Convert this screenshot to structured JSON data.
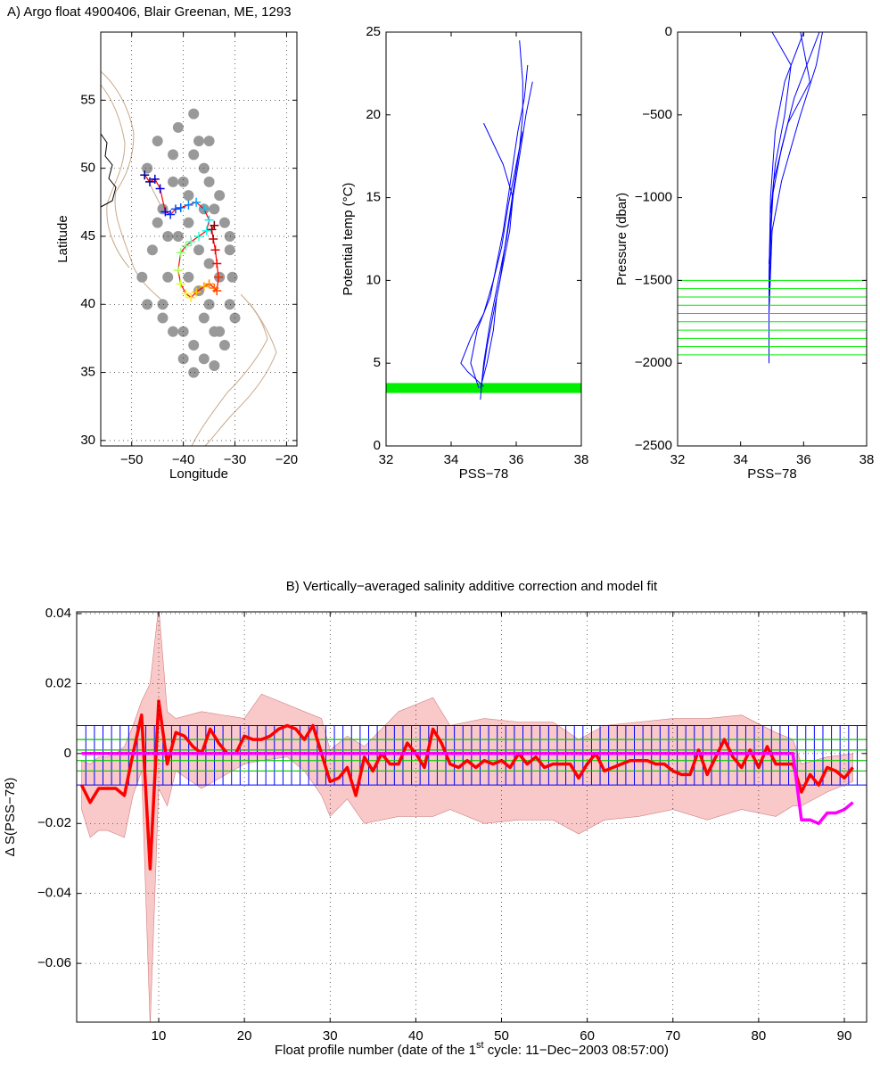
{
  "chart_data": [
    {
      "type": "scatter",
      "suptitle": "A) Argo float 4900406, Blair Greenan, ME, 1293",
      "xlabel": "Longitude",
      "ylabel": "Latitude",
      "grid": true,
      "xlim": [
        -56,
        -18
      ],
      "ylim": [
        29.6,
        60
      ],
      "xticks": [
        {
          "value": -50,
          "label": "−50"
        },
        {
          "value": -40,
          "label": "−40"
        },
        {
          "value": -30,
          "label": "−30"
        },
        {
          "value": -20,
          "label": "−20"
        }
      ],
      "yticks": [
        30,
        35,
        40,
        45,
        50,
        55
      ],
      "series": [
        {
          "color": "#999999",
          "x": [
            -47,
            -45,
            -44,
            -42,
            -41,
            -40,
            -39,
            -38,
            -37,
            -36,
            -35,
            -34,
            -33,
            -32,
            -31,
            -30.5,
            -46,
            -43,
            -41,
            -39,
            -37,
            -35,
            -33,
            -31,
            -44,
            -42,
            -40,
            -38,
            -36,
            -34,
            -32,
            -30,
            -45,
            -43,
            -39,
            -37,
            -35,
            -33,
            -40,
            -38,
            -36,
            -34,
            -42,
            -38,
            -35,
            -31,
            -48,
            -47,
            -44,
            -36
          ],
          "y": [
            50,
            52,
            47,
            51,
            53,
            49,
            48,
            54,
            52,
            50,
            49,
            47,
            48,
            46,
            44,
            42,
            44,
            42,
            45,
            46,
            44,
            43,
            42,
            40,
            40,
            38,
            38,
            37,
            39,
            38,
            37,
            39,
            46,
            45,
            42,
            41,
            40,
            38,
            36,
            35,
            36,
            35.5,
            49,
            51,
            52,
            45,
            42,
            40,
            39,
            47
          ]
        },
        {
          "color": "#ff0000",
          "colormap": "jet",
          "x": [
            -47.5,
            -46.5,
            -45.5,
            -44.5,
            -43.5,
            -42.5,
            -41.5,
            -40.5,
            -39,
            -37.5,
            -36,
            -35,
            -35.5,
            -37,
            -38.5,
            -39.5,
            -40.5,
            -41,
            -40.5,
            -39.5,
            -38.5,
            -37.5,
            -36,
            -35,
            -34,
            -33.5,
            -33.2,
            -33.5,
            -33.8,
            -34.2,
            -34.5,
            -34
          ],
          "y": [
            49.5,
            49,
            49.2,
            48.5,
            46.8,
            46.6,
            47,
            47.1,
            47.3,
            47.5,
            47,
            46.2,
            45.4,
            45,
            44.6,
            44.3,
            43.8,
            42.5,
            41.5,
            40.8,
            40.5,
            40.9,
            41.3,
            41.5,
            41.2,
            41,
            42,
            43,
            44,
            44.8,
            45.5,
            45.8
          ]
        }
      ]
    },
    {
      "type": "line",
      "xlabel": "PSS−78",
      "ylabel": "Potential temp (°C)",
      "grid": false,
      "xlim": [
        32,
        38
      ],
      "ylim": [
        0,
        25
      ],
      "xticks": [
        32,
        34,
        36,
        38
      ],
      "yticks": [
        0,
        5,
        10,
        15,
        20,
        25
      ],
      "band": {
        "color": "#00ee00",
        "range": [
          3.2,
          3.8
        ]
      },
      "series": [
        {
          "color": "#0000ff",
          "x": [
            34.9,
            34.95,
            35.1,
            35.3,
            35.5,
            35.65,
            35.8,
            35.95,
            36.1,
            36.2,
            36.2,
            36.1
          ],
          "y": [
            2.8,
            4,
            6,
            8,
            10,
            12,
            14,
            16,
            18,
            20,
            22,
            24.5
          ]
        },
        {
          "color": "#0000ff",
          "x": [
            34.85,
            34.6,
            34.8,
            35.2,
            35.4,
            35.6,
            35.75,
            35.9,
            36.05,
            36.25,
            36.35
          ],
          "y": [
            3.5,
            5,
            7,
            9,
            11,
            13,
            15,
            17,
            19,
            21,
            23
          ]
        },
        {
          "color": "#0000ff",
          "x": [
            35.0,
            34.5,
            34.3,
            34.6,
            35.0,
            35.3,
            35.55,
            35.75,
            36.0,
            36.2
          ],
          "y": [
            3.6,
            4.5,
            5,
            6.5,
            8,
            10,
            12,
            14.5,
            17,
            19
          ]
        },
        {
          "color": "#0000ff",
          "x": [
            34.9,
            35.1,
            35.3,
            35.4,
            35.6,
            35.8,
            35.9,
            35.6,
            35.0
          ],
          "y": [
            3.5,
            5,
            7,
            9,
            11,
            13,
            15,
            17,
            19.5
          ]
        },
        {
          "color": "#0000ff",
          "x": [
            34.92,
            35.0,
            35.2,
            35.45,
            35.7,
            35.9,
            36.1,
            36.3,
            36.5
          ],
          "y": [
            3.4,
            5,
            7.5,
            10,
            12.5,
            15,
            17.5,
            20,
            22
          ]
        }
      ]
    },
    {
      "type": "line",
      "xlabel": "PSS−78",
      "ylabel": "Pressure (dbar)",
      "grid": false,
      "xlim": [
        32,
        38
      ],
      "ylim": [
        -2500,
        0
      ],
      "xticks": [
        32,
        34,
        36,
        38
      ],
      "yticks": [
        {
          "value": -2500,
          "label": "−2500"
        },
        {
          "value": -2000,
          "label": "−2000"
        },
        {
          "value": -1500,
          "label": "−1500"
        },
        {
          "value": -1000,
          "label": "−1000"
        },
        {
          "value": -500,
          "label": "−500"
        },
        0
      ],
      "levels": {
        "color": "#00ee00",
        "values": [
          -1500,
          -1550,
          -1600,
          -1650,
          -1700,
          -1750,
          -1800,
          -1850,
          -1900,
          -1950
        ]
      },
      "series": [
        {
          "color": "#0000ff",
          "x": [
            34.9,
            34.9,
            34.95,
            35.1,
            35.4,
            35.8,
            36.0
          ],
          "y": [
            -2000,
            -1500,
            -1000,
            -600,
            -300,
            -100,
            0
          ]
        },
        {
          "color": "#0000ff",
          "x": [
            34.9,
            35.0,
            35.3,
            35.7,
            36.2,
            36.5
          ],
          "y": [
            -1600,
            -1000,
            -700,
            -400,
            -150,
            0
          ]
        },
        {
          "color": "#0000ff",
          "x": [
            34.9,
            34.95,
            35.1,
            35.4,
            35.6,
            35.0
          ],
          "y": [
            -1500,
            -1100,
            -800,
            -500,
            -200,
            0
          ]
        },
        {
          "color": "#0000ff",
          "x": [
            34.9,
            35.0,
            35.3,
            35.9,
            36.4,
            36.6
          ],
          "y": [
            -1700,
            -1200,
            -900,
            -500,
            -200,
            0
          ]
        },
        {
          "color": "#0000ff",
          "x": [
            34.9,
            35.05,
            35.5,
            36.2,
            35.9
          ],
          "y": [
            -1400,
            -900,
            -550,
            -300,
            0
          ]
        }
      ]
    },
    {
      "type": "line",
      "title": "B) Vertically−averaged salinity  additive correction and model fit",
      "xlabel": [
        "Float profile number (date of the 1",
        "st",
        " cycle: 11−Dec−2003 08:57:00)"
      ],
      "ylabel": "Δ S(PSS−78)",
      "grid": true,
      "xlim": [
        0.43,
        92.6
      ],
      "ylim": [
        -0.0768,
        0.0405
      ],
      "xticks": [
        10,
        20,
        30,
        40,
        50,
        60,
        70,
        80,
        90
      ],
      "yticks": [
        {
          "value": -0.06,
          "label": "−0.06"
        },
        {
          "value": -0.04,
          "label": "−0.04"
        },
        {
          "value": -0.02,
          "label": "−0.02"
        },
        0,
        0.02,
        0.04
      ],
      "band": {
        "color": "#f9c8c8",
        "x": [
          1,
          2,
          3,
          4,
          5,
          6,
          7,
          8,
          9,
          10,
          11,
          12,
          15,
          20,
          22,
          25,
          27,
          29,
          30,
          32,
          34,
          38,
          42,
          44,
          48,
          52,
          56,
          59,
          62,
          66,
          70,
          74,
          78,
          82,
          84,
          85,
          88,
          91
        ],
        "upper": [
          -0.002,
          -0.003,
          -0.001,
          -0.001,
          0.0,
          0.002,
          0.008,
          0.015,
          0.02,
          0.042,
          0.012,
          0.01,
          0.012,
          0.01,
          0.017,
          0.014,
          0.012,
          0.01,
          0.001,
          0.005,
          0.002,
          0.012,
          0.016,
          0.008,
          0.01,
          0.009,
          0.009,
          0.004,
          0.008,
          0.009,
          0.01,
          0.01,
          0.011,
          0.006,
          0.004,
          -0.003,
          -0.001,
          0.0
        ],
        "lower": [
          -0.016,
          -0.024,
          -0.022,
          -0.022,
          -0.023,
          -0.024,
          -0.012,
          -0.005,
          -0.078,
          -0.01,
          -0.015,
          -0.005,
          -0.01,
          -0.003,
          -0.002,
          -0.001,
          -0.005,
          -0.012,
          -0.018,
          -0.013,
          -0.02,
          -0.018,
          -0.018,
          -0.016,
          -0.02,
          -0.019,
          -0.019,
          -0.023,
          -0.019,
          -0.018,
          -0.016,
          -0.019,
          -0.016,
          -0.018,
          -0.015,
          -0.015,
          -0.011,
          -0.008
        ]
      },
      "blue_band": {
        "color": "#0000ff",
        "range": [
          -0.009,
          0.008
        ]
      },
      "green_band": {
        "color": "#00cc00",
        "levels": [
          -0.005,
          -0.002,
          0.001,
          0.004
        ]
      },
      "series": [
        {
          "color": "#ff0000",
          "x": [
            1,
            2,
            3,
            4,
            5,
            6,
            7,
            8,
            9,
            10,
            11,
            12,
            13,
            14,
            15,
            16,
            17,
            18,
            19,
            20,
            21,
            22,
            23,
            24,
            25,
            26,
            27,
            28,
            29,
            30,
            31,
            32,
            33,
            34,
            35,
            36,
            37,
            38,
            39,
            40,
            41,
            42,
            43,
            44,
            45,
            46,
            47,
            48,
            49,
            50,
            51,
            52,
            53,
            54,
            55,
            56,
            57,
            58,
            59,
            60,
            61,
            62,
            63,
            64,
            65,
            66,
            67,
            68,
            69,
            70,
            71,
            72,
            73,
            74,
            75,
            76,
            77,
            78,
            79,
            80,
            81,
            82,
            83,
            84,
            85,
            86,
            87,
            88,
            89,
            90,
            91
          ],
          "values": [
            -0.009,
            -0.014,
            -0.01,
            -0.01,
            -0.01,
            -0.012,
            0.0,
            0.011,
            -0.033,
            0.015,
            -0.003,
            0.006,
            0.005,
            0.002,
            0.0,
            0.007,
            0.003,
            0.0,
            0.0,
            0.005,
            0.004,
            0.004,
            0.005,
            0.007,
            0.008,
            0.007,
            0.004,
            0.008,
            0.0,
            -0.008,
            -0.007,
            -0.004,
            -0.012,
            -0.001,
            -0.005,
            0.0,
            -0.003,
            -0.003,
            0.003,
            0.0,
            -0.004,
            0.007,
            0.003,
            -0.003,
            -0.004,
            -0.002,
            -0.004,
            -0.002,
            -0.003,
            -0.002,
            -0.004,
            0.0,
            -0.003,
            -0.001,
            -0.004,
            -0.003,
            -0.003,
            -0.003,
            -0.007,
            -0.003,
            0.0,
            -0.005,
            -0.004,
            -0.003,
            -0.002,
            -0.002,
            -0.002,
            -0.003,
            -0.003,
            -0.005,
            -0.006,
            -0.006,
            0.001,
            -0.006,
            -0.001,
            0.004,
            -0.001,
            -0.004,
            0.001,
            -0.004,
            0.002,
            -0.003,
            -0.003,
            -0.003,
            -0.011,
            -0.006,
            -0.009,
            -0.004,
            -0.005,
            -0.007,
            -0.004
          ]
        },
        {
          "color": "#ff00ff",
          "x": [
            1,
            84,
            85,
            86,
            87,
            88,
            89,
            90,
            91
          ],
          "values": [
            0,
            0,
            -0.019,
            -0.019,
            -0.02,
            -0.017,
            -0.017,
            -0.016,
            -0.014
          ]
        }
      ]
    }
  ]
}
